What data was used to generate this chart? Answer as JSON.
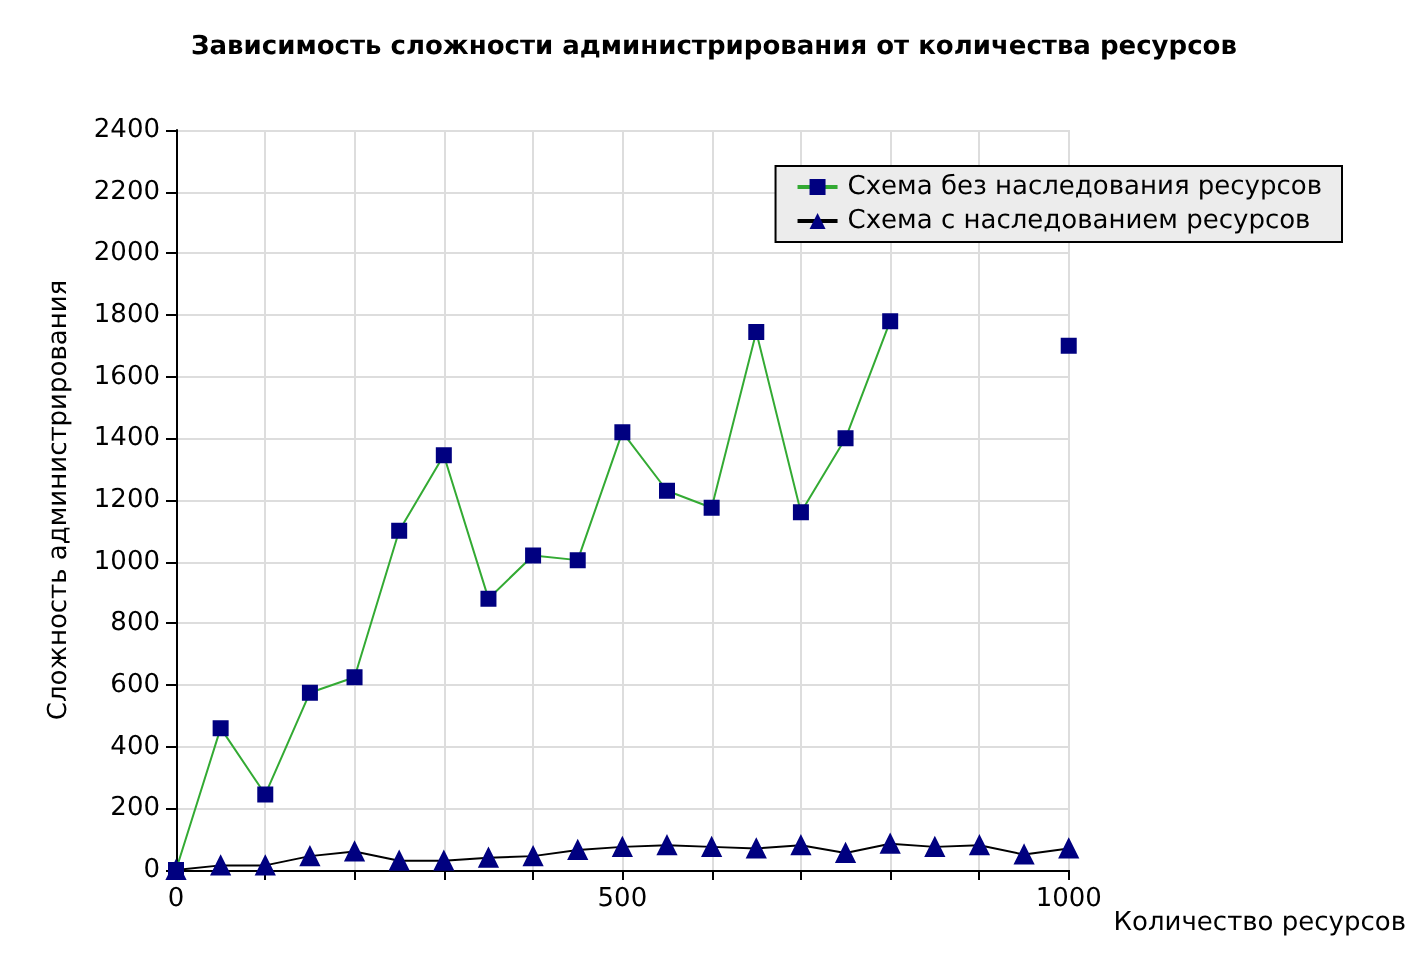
{
  "chart_data": {
    "type": "line",
    "title": "Зависимость сложности администрирования от количества ресурсов",
    "xlabel": "Количество ресурсов",
    "ylabel": "Сложность администрирования",
    "x": [
      0,
      50,
      100,
      150,
      200,
      250,
      300,
      350,
      400,
      450,
      500,
      550,
      600,
      650,
      700,
      750,
      800,
      850,
      900,
      950,
      1000
    ],
    "series": [
      {
        "name": "Схема без наследования ресурсов",
        "color": "#33aa33",
        "marker": "square",
        "colors": [
          "#000080",
          "#000080",
          "#000080",
          "#000080",
          "#000080",
          "#000080",
          "#000080",
          "#000080",
          "#000080",
          "#000080",
          "#000080",
          "#000080",
          "#000080",
          "#000080",
          "#000080",
          "#000080",
          "#000080",
          "#000080",
          "#000080",
          "#000080",
          "#000080"
        ],
        "values": [
          0,
          460,
          245,
          575,
          625,
          1100,
          1345,
          880,
          1020,
          1005,
          1420,
          1230,
          1175,
          1745,
          1160,
          1400,
          1780,
          null,
          null,
          null,
          1700
        ]
      },
      {
        "name": "Схема с наследованием ресурсов",
        "color": "#000000",
        "marker": "triangle",
        "colors": [
          "#000080",
          "#000080",
          "#000080",
          "#000080",
          "#000080",
          "#000080",
          "#000080",
          "#000080",
          "#000080",
          "#000080",
          "#000080",
          "#000080",
          "#000080",
          "#000080",
          "#000080",
          "#000080",
          "#000080",
          "#000080",
          "#000080",
          "#000080",
          "#000080"
        ],
        "values": [
          0,
          15,
          15,
          45,
          60,
          30,
          30,
          40,
          45,
          65,
          75,
          80,
          75,
          70,
          80,
          55,
          85,
          75,
          80,
          50,
          70
        ]
      }
    ],
    "xlim": [
      0,
      1000
    ],
    "xticks": [
      0,
      {
        "value": 100,
        "label": null
      },
      {
        "value": 200,
        "label": null
      },
      {
        "value": 300,
        "label": null
      },
      {
        "value": 400,
        "label": null
      },
      500,
      {
        "value": 600,
        "label": null
      },
      {
        "value": 700,
        "label": null
      },
      {
        "value": 800,
        "label": null
      },
      {
        "value": 900,
        "label": null
      },
      1000
    ],
    "ylim": [
      0,
      2400
    ],
    "yticks": [
      0,
      200,
      400,
      600,
      800,
      1000,
      1200,
      1400,
      1600,
      1800,
      2000,
      2200,
      2400
    ],
    "grid": true,
    "legend": "top right",
    "line_style": "solid"
  }
}
